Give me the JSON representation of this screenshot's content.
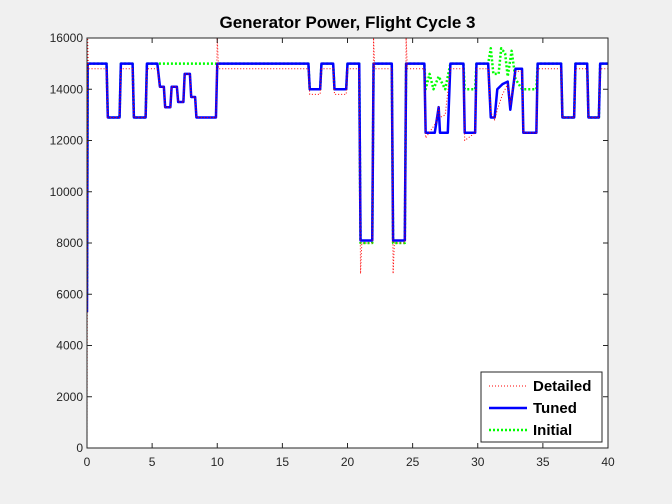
{
  "chart_data": {
    "type": "line",
    "title": "Generator Power, Flight Cycle 3",
    "xlabel": "",
    "ylabel": "",
    "xlim": [
      0,
      40
    ],
    "ylim": [
      0,
      16000
    ],
    "xticks": [
      0,
      5,
      10,
      15,
      20,
      25,
      30,
      35,
      40
    ],
    "yticks": [
      0,
      2000,
      4000,
      6000,
      8000,
      10000,
      12000,
      14000,
      16000
    ],
    "grid": false,
    "legend_position": "bottom-right",
    "series": [
      {
        "name": "Detailed",
        "color": "#ff0000",
        "style": "dotted",
        "points": [
          [
            0,
            0
          ],
          [
            0.05,
            16000
          ],
          [
            0.1,
            14800
          ],
          [
            1.5,
            14800
          ],
          [
            1.6,
            12900
          ],
          [
            2.5,
            12900
          ],
          [
            2.6,
            14800
          ],
          [
            3.5,
            14800
          ],
          [
            3.6,
            12900
          ],
          [
            4.5,
            12900
          ],
          [
            4.6,
            14800
          ],
          [
            5.4,
            14800
          ],
          [
            5.6,
            14100
          ],
          [
            5.9,
            14100
          ],
          [
            6,
            13300
          ],
          [
            6.4,
            13300
          ],
          [
            6.5,
            14100
          ],
          [
            6.9,
            14100
          ],
          [
            7,
            13500
          ],
          [
            7.4,
            13500
          ],
          [
            7.5,
            14600
          ],
          [
            7.9,
            14600
          ],
          [
            8,
            13700
          ],
          [
            8.3,
            13700
          ],
          [
            8.4,
            12900
          ],
          [
            9.9,
            12900
          ],
          [
            10,
            16000
          ],
          [
            10.1,
            14800
          ],
          [
            17,
            14800
          ],
          [
            17.1,
            13800
          ],
          [
            17.9,
            13800
          ],
          [
            18,
            14800
          ],
          [
            18.9,
            14800
          ],
          [
            19,
            13800
          ],
          [
            19.9,
            13800
          ],
          [
            20,
            14800
          ],
          [
            20.9,
            14800
          ],
          [
            21,
            6800
          ],
          [
            21.1,
            8000
          ],
          [
            21.9,
            8000
          ],
          [
            22,
            16000
          ],
          [
            22.1,
            14800
          ],
          [
            23.4,
            14800
          ],
          [
            23.5,
            6800
          ],
          [
            23.6,
            8000
          ],
          [
            24.4,
            8000
          ],
          [
            24.5,
            16000
          ],
          [
            24.6,
            14800
          ],
          [
            25.9,
            14800
          ],
          [
            26,
            12100
          ],
          [
            26.8,
            12700
          ],
          [
            27,
            13300
          ],
          [
            27.1,
            12900
          ],
          [
            27.5,
            13000
          ],
          [
            27.9,
            14800
          ],
          [
            28.9,
            14800
          ],
          [
            29,
            12000
          ],
          [
            29.8,
            12300
          ],
          [
            29.9,
            14800
          ],
          [
            30.8,
            14800
          ],
          [
            31,
            13100
          ],
          [
            31.3,
            12800
          ],
          [
            31.5,
            13200
          ],
          [
            31.9,
            13800
          ],
          [
            32.3,
            14200
          ],
          [
            32.5,
            13400
          ],
          [
            32.9,
            14700
          ],
          [
            33.4,
            14700
          ],
          [
            33.5,
            12300
          ],
          [
            34.5,
            12300
          ],
          [
            34.6,
            14800
          ],
          [
            36.4,
            14800
          ],
          [
            36.5,
            12900
          ],
          [
            37.4,
            12900
          ],
          [
            37.5,
            14800
          ],
          [
            38.4,
            14800
          ],
          [
            38.5,
            12900
          ],
          [
            39.3,
            12900
          ],
          [
            39.4,
            14800
          ],
          [
            40,
            14800
          ]
        ]
      },
      {
        "name": "Tuned",
        "color": "#0000ff",
        "style": "solid",
        "points": [
          [
            0,
            5300
          ],
          [
            0.05,
            15000
          ],
          [
            1.5,
            15000
          ],
          [
            1.6,
            12900
          ],
          [
            2.5,
            12900
          ],
          [
            2.6,
            15000
          ],
          [
            3.5,
            15000
          ],
          [
            3.6,
            12900
          ],
          [
            4.5,
            12900
          ],
          [
            4.6,
            15000
          ],
          [
            5.4,
            15000
          ],
          [
            5.6,
            14100
          ],
          [
            5.9,
            14100
          ],
          [
            6,
            13300
          ],
          [
            6.4,
            13300
          ],
          [
            6.5,
            14100
          ],
          [
            6.9,
            14100
          ],
          [
            7,
            13500
          ],
          [
            7.4,
            13500
          ],
          [
            7.5,
            14600
          ],
          [
            7.9,
            14600
          ],
          [
            8,
            13700
          ],
          [
            8.3,
            13700
          ],
          [
            8.4,
            12900
          ],
          [
            9.9,
            12900
          ],
          [
            10,
            15000
          ],
          [
            17,
            15000
          ],
          [
            17.1,
            14000
          ],
          [
            17.9,
            14000
          ],
          [
            18,
            15000
          ],
          [
            18.9,
            15000
          ],
          [
            19,
            14000
          ],
          [
            19.9,
            14000
          ],
          [
            20,
            15000
          ],
          [
            20.9,
            15000
          ],
          [
            21,
            8100
          ],
          [
            21.9,
            8100
          ],
          [
            22,
            15000
          ],
          [
            23.4,
            15000
          ],
          [
            23.5,
            8100
          ],
          [
            24.4,
            8100
          ],
          [
            24.5,
            15000
          ],
          [
            25.9,
            15000
          ],
          [
            26,
            12300
          ],
          [
            26.7,
            12300
          ],
          [
            27,
            13300
          ],
          [
            27.1,
            12300
          ],
          [
            27.7,
            12300
          ],
          [
            27.9,
            15000
          ],
          [
            28.9,
            15000
          ],
          [
            29,
            12300
          ],
          [
            29.8,
            12300
          ],
          [
            29.9,
            15000
          ],
          [
            30.8,
            15000
          ],
          [
            31,
            12900
          ],
          [
            31.3,
            12900
          ],
          [
            31.5,
            14000
          ],
          [
            31.9,
            14200
          ],
          [
            32.3,
            14300
          ],
          [
            32.5,
            13200
          ],
          [
            32.9,
            14800
          ],
          [
            33.4,
            14800
          ],
          [
            33.5,
            12300
          ],
          [
            34.5,
            12300
          ],
          [
            34.6,
            15000
          ],
          [
            36.4,
            15000
          ],
          [
            36.5,
            12900
          ],
          [
            37.4,
            12900
          ],
          [
            37.5,
            15000
          ],
          [
            38.4,
            15000
          ],
          [
            38.5,
            12900
          ],
          [
            39.3,
            12900
          ],
          [
            39.4,
            15000
          ],
          [
            40,
            15000
          ]
        ]
      },
      {
        "name": "Initial",
        "color": "#00ff00",
        "style": "dotted",
        "points": [
          [
            0,
            6000
          ],
          [
            0.05,
            15000
          ],
          [
            1.5,
            15000
          ],
          [
            1.6,
            12900
          ],
          [
            2.5,
            12900
          ],
          [
            2.6,
            15000
          ],
          [
            3.5,
            15000
          ],
          [
            3.6,
            12900
          ],
          [
            4.5,
            12900
          ],
          [
            4.6,
            15000
          ],
          [
            17,
            15000
          ],
          [
            17.1,
            14000
          ],
          [
            17.9,
            14000
          ],
          [
            18,
            15000
          ],
          [
            18.9,
            15000
          ],
          [
            19,
            14000
          ],
          [
            19.9,
            14000
          ],
          [
            20,
            15000
          ],
          [
            20.9,
            15000
          ],
          [
            21,
            8000
          ],
          [
            21.9,
            8000
          ],
          [
            22,
            15000
          ],
          [
            23.4,
            15000
          ],
          [
            23.5,
            8000
          ],
          [
            24.4,
            8000
          ],
          [
            24.5,
            15000
          ],
          [
            25.9,
            15000
          ],
          [
            26,
            14000
          ],
          [
            26.3,
            14600
          ],
          [
            26.6,
            14000
          ],
          [
            27,
            14500
          ],
          [
            27.5,
            14000
          ],
          [
            27.9,
            15000
          ],
          [
            28.9,
            15000
          ],
          [
            29,
            14000
          ],
          [
            29.8,
            14000
          ],
          [
            29.9,
            15000
          ],
          [
            30.8,
            15000
          ],
          [
            31,
            15600
          ],
          [
            31.2,
            14600
          ],
          [
            31.6,
            14600
          ],
          [
            31.8,
            15600
          ],
          [
            32.1,
            15400
          ],
          [
            32.3,
            14500
          ],
          [
            32.6,
            15500
          ],
          [
            32.9,
            14400
          ],
          [
            33.4,
            14000
          ],
          [
            34.5,
            14000
          ],
          [
            34.6,
            15000
          ],
          [
            36.4,
            15000
          ],
          [
            36.5,
            12900
          ],
          [
            37.4,
            12900
          ],
          [
            37.5,
            15000
          ],
          [
            38.4,
            15000
          ],
          [
            38.5,
            12900
          ],
          [
            39.3,
            12900
          ],
          [
            39.4,
            15000
          ],
          [
            40,
            15000
          ]
        ]
      }
    ]
  }
}
